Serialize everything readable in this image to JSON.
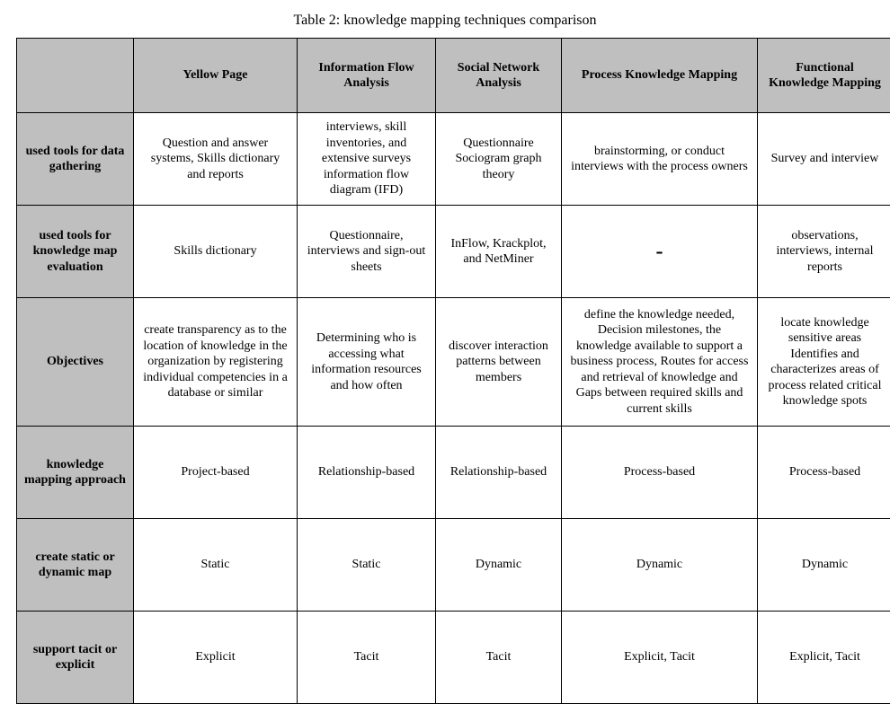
{
  "caption": "Table 2: knowledge mapping techniques comparison",
  "columns": {
    "c1": "Yellow Page",
    "c2": "Information Flow Analysis",
    "c3": "Social Network Analysis",
    "c4": "Process Knowledge Mapping",
    "c5": "Functional Knowledge Mapping"
  },
  "rows": {
    "r1": {
      "label": "used tools for data gathering",
      "c1": "Question and answer systems, Skills dictionary and reports",
      "c2": "interviews,\nskill inventories, and extensive surveys information flow diagram (IFD)",
      "c3": "Questionnaire Sociogram\ngraph theory",
      "c4": "brainstorming, or conduct interviews with the process owners",
      "c5": "Survey and interview"
    },
    "r2": {
      "label": "used tools for knowledge map evaluation",
      "c1": "Skills dictionary",
      "c2": "Questionnaire, interviews and sign-out sheets",
      "c3": "InFlow, Krackplot, and NetMiner",
      "c4": "-",
      "c5": "observations, interviews, internal reports"
    },
    "r3": {
      "label": "Objectives",
      "c1": "create transparency as to the location of knowledge in the organization by registering individual competencies in a database or similar",
      "c2": "Determining who is accessing what information resources and how often",
      "c3": "discover interaction patterns between members",
      "c4": "define the knowledge needed, Decision milestones, the knowledge available to support a business process, Routes for access and retrieval of knowledge and Gaps between required skills and current skills",
      "c5": "locate knowledge sensitive areas Identifies and characterizes areas of process related critical knowledge spots"
    },
    "r4": {
      "label": "knowledge mapping approach",
      "c1": "Project-based",
      "c2": "Relationship-based",
      "c3": "Relationship-based",
      "c4": "Process-based",
      "c5": "Process-based"
    },
    "r5": {
      "label": "create static or dynamic map",
      "c1": "Static",
      "c2": "Static",
      "c3": "Dynamic",
      "c4": "Dynamic",
      "c5": "Dynamic"
    },
    "r6": {
      "label": "support tacit or explicit",
      "c1": "Explicit",
      "c2": "Tacit",
      "c3": "Tacit",
      "c4": "Explicit, Tacit",
      "c5": "Explicit, Tacit"
    }
  }
}
